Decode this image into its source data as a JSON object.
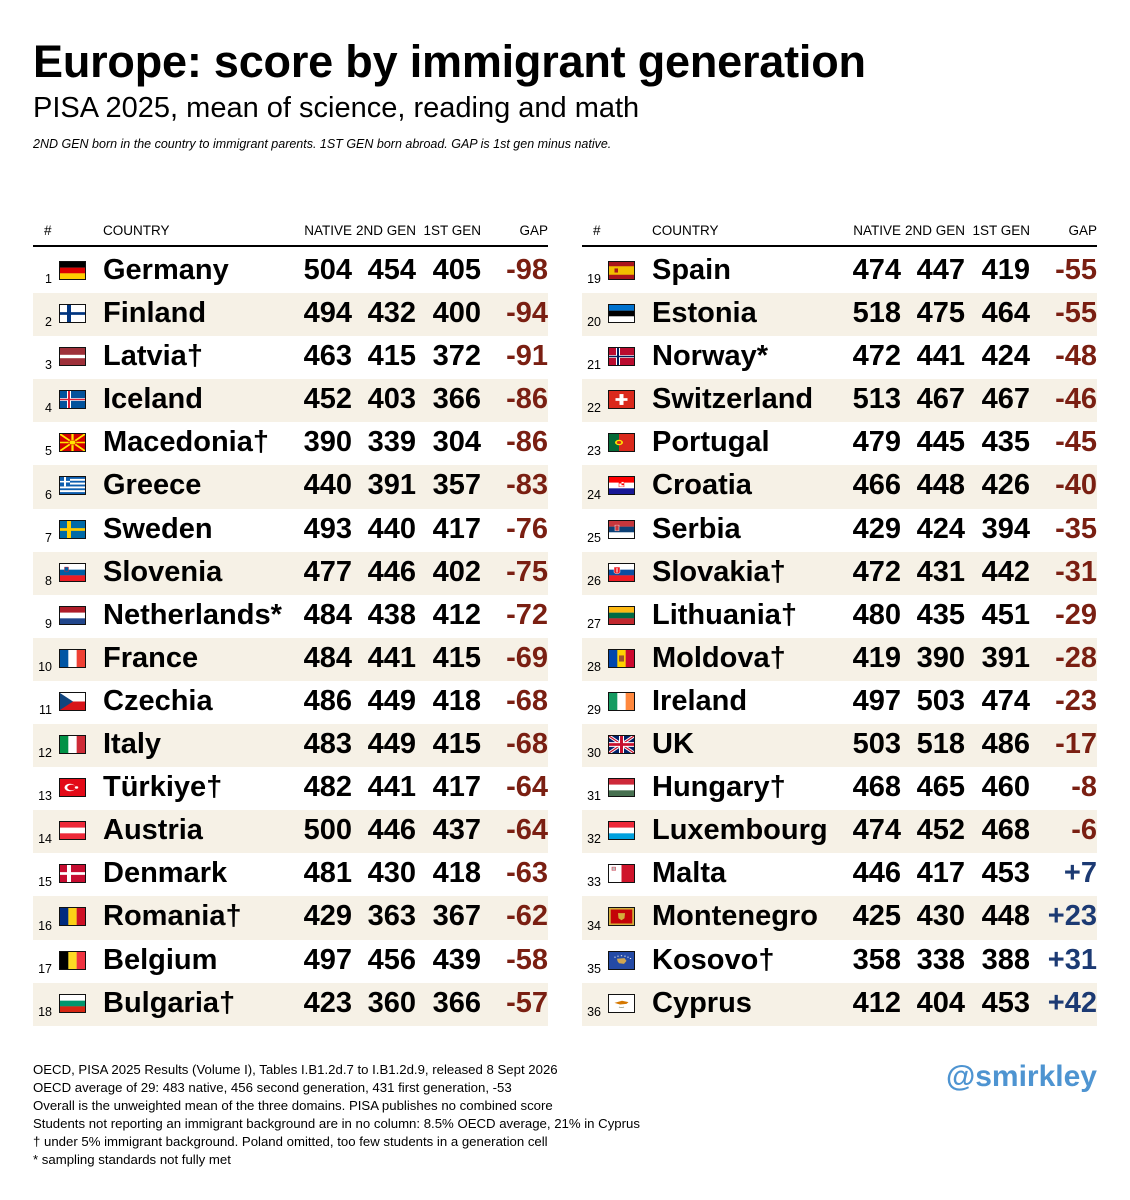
{
  "title": "Europe: score by immigrant generation",
  "subtitle": "PISA 2025, mean of science, reading and math",
  "note": "2ND GEN born in the country to immigrant parents. 1ST GEN born abroad. GAP is 1st gen minus native.",
  "headers": {
    "num": "#",
    "country": "COUNTRY",
    "native": "NATIVE",
    "gen2": "2ND GEN",
    "gen1": "1ST GEN",
    "gap": "GAP"
  },
  "chart_data": {
    "type": "table",
    "columns": [
      "#",
      "COUNTRY",
      "NATIVE",
      "2ND GEN",
      "1ST GEN",
      "GAP"
    ],
    "rows": [
      {
        "rank": "1",
        "country": "Germany",
        "flag": "germany-flag",
        "native": "504",
        "gen2": "454",
        "gen1": "405",
        "gap": "-98"
      },
      {
        "rank": "2",
        "country": "Finland",
        "flag": "finland-flag",
        "native": "494",
        "gen2": "432",
        "gen1": "400",
        "gap": "-94"
      },
      {
        "rank": "3",
        "country": "Latvia†",
        "flag": "latvia-flag",
        "native": "463",
        "gen2": "415",
        "gen1": "372",
        "gap": "-91"
      },
      {
        "rank": "4",
        "country": "Iceland",
        "flag": "iceland-flag",
        "native": "452",
        "gen2": "403",
        "gen1": "366",
        "gap": "-86"
      },
      {
        "rank": "5",
        "country": "Macedonia†",
        "flag": "macedonia-flag",
        "native": "390",
        "gen2": "339",
        "gen1": "304",
        "gap": "-86"
      },
      {
        "rank": "6",
        "country": "Greece",
        "flag": "greece-flag",
        "native": "440",
        "gen2": "391",
        "gen1": "357",
        "gap": "-83"
      },
      {
        "rank": "7",
        "country": "Sweden",
        "flag": "sweden-flag",
        "native": "493",
        "gen2": "440",
        "gen1": "417",
        "gap": "-76"
      },
      {
        "rank": "8",
        "country": "Slovenia",
        "flag": "slovenia-flag",
        "native": "477",
        "gen2": "446",
        "gen1": "402",
        "gap": "-75"
      },
      {
        "rank": "9",
        "country": "Netherlands*",
        "flag": "netherlands-flag",
        "native": "484",
        "gen2": "438",
        "gen1": "412",
        "gap": "-72"
      },
      {
        "rank": "10",
        "country": "France",
        "flag": "france-flag",
        "native": "484",
        "gen2": "441",
        "gen1": "415",
        "gap": "-69"
      },
      {
        "rank": "11",
        "country": "Czechia",
        "flag": "czechia-flag",
        "native": "486",
        "gen2": "449",
        "gen1": "418",
        "gap": "-68"
      },
      {
        "rank": "12",
        "country": "Italy",
        "flag": "italy-flag",
        "native": "483",
        "gen2": "449",
        "gen1": "415",
        "gap": "-68"
      },
      {
        "rank": "13",
        "country": "Türkiye†",
        "flag": "turkiye-flag",
        "native": "482",
        "gen2": "441",
        "gen1": "417",
        "gap": "-64"
      },
      {
        "rank": "14",
        "country": "Austria",
        "flag": "austria-flag",
        "native": "500",
        "gen2": "446",
        "gen1": "437",
        "gap": "-64"
      },
      {
        "rank": "15",
        "country": "Denmark",
        "flag": "denmark-flag",
        "native": "481",
        "gen2": "430",
        "gen1": "418",
        "gap": "-63"
      },
      {
        "rank": "16",
        "country": "Romania†",
        "flag": "romania-flag",
        "native": "429",
        "gen2": "363",
        "gen1": "367",
        "gap": "-62"
      },
      {
        "rank": "17",
        "country": "Belgium",
        "flag": "belgium-flag",
        "native": "497",
        "gen2": "456",
        "gen1": "439",
        "gap": "-58"
      },
      {
        "rank": "18",
        "country": "Bulgaria†",
        "flag": "bulgaria-flag",
        "native": "423",
        "gen2": "360",
        "gen1": "366",
        "gap": "-57"
      },
      {
        "rank": "19",
        "country": "Spain",
        "flag": "spain-flag",
        "native": "474",
        "gen2": "447",
        "gen1": "419",
        "gap": "-55"
      },
      {
        "rank": "20",
        "country": "Estonia",
        "flag": "estonia-flag",
        "native": "518",
        "gen2": "475",
        "gen1": "464",
        "gap": "-55"
      },
      {
        "rank": "21",
        "country": "Norway*",
        "flag": "norway-flag",
        "native": "472",
        "gen2": "441",
        "gen1": "424",
        "gap": "-48"
      },
      {
        "rank": "22",
        "country": "Switzerland",
        "flag": "switzerland-flag",
        "native": "513",
        "gen2": "467",
        "gen1": "467",
        "gap": "-46"
      },
      {
        "rank": "23",
        "country": "Portugal",
        "flag": "portugal-flag",
        "native": "479",
        "gen2": "445",
        "gen1": "435",
        "gap": "-45"
      },
      {
        "rank": "24",
        "country": "Croatia",
        "flag": "croatia-flag",
        "native": "466",
        "gen2": "448",
        "gen1": "426",
        "gap": "-40"
      },
      {
        "rank": "25",
        "country": "Serbia",
        "flag": "serbia-flag",
        "native": "429",
        "gen2": "424",
        "gen1": "394",
        "gap": "-35"
      },
      {
        "rank": "26",
        "country": "Slovakia†",
        "flag": "slovakia-flag",
        "native": "472",
        "gen2": "431",
        "gen1": "442",
        "gap": "-31"
      },
      {
        "rank": "27",
        "country": "Lithuania†",
        "flag": "lithuania-flag",
        "native": "480",
        "gen2": "435",
        "gen1": "451",
        "gap": "-29"
      },
      {
        "rank": "28",
        "country": "Moldova†",
        "flag": "moldova-flag",
        "native": "419",
        "gen2": "390",
        "gen1": "391",
        "gap": "-28"
      },
      {
        "rank": "29",
        "country": "Ireland",
        "flag": "ireland-flag",
        "native": "497",
        "gen2": "503",
        "gen1": "474",
        "gap": "-23"
      },
      {
        "rank": "30",
        "country": "UK",
        "flag": "uk-flag",
        "native": "503",
        "gen2": "518",
        "gen1": "486",
        "gap": "-17"
      },
      {
        "rank": "31",
        "country": "Hungary†",
        "flag": "hungary-flag",
        "native": "468",
        "gen2": "465",
        "gen1": "460",
        "gap": "-8"
      },
      {
        "rank": "32",
        "country": "Luxembourg",
        "flag": "luxembourg-flag",
        "native": "474",
        "gen2": "452",
        "gen1": "468",
        "gap": "-6"
      },
      {
        "rank": "33",
        "country": "Malta",
        "flag": "malta-flag",
        "native": "446",
        "gen2": "417",
        "gen1": "453",
        "gap": "+7"
      },
      {
        "rank": "34",
        "country": "Montenegro",
        "flag": "montenegro-flag",
        "native": "425",
        "gen2": "430",
        "gen1": "448",
        "gap": "+23"
      },
      {
        "rank": "35",
        "country": "Kosovo†",
        "flag": "kosovo-flag",
        "native": "358",
        "gen2": "338",
        "gen1": "388",
        "gap": "+31"
      },
      {
        "rank": "36",
        "country": "Cyprus",
        "flag": "cyprus-flag",
        "native": "412",
        "gen2": "404",
        "gen1": "453",
        "gap": "+42"
      }
    ]
  },
  "colors": {
    "negative_gap": "#7a1f12",
    "positive_gap": "#1c3a73",
    "row_stripe": "#f6f1e6",
    "handle": "#4e94d1"
  },
  "footer": [
    "OECD, PISA 2025 Results (Volume I), Tables I.B1.2d.7 to I.B1.2d.9, released 8 Sept 2026",
    "OECD average of 29: 483 native, 456 second generation, 431 first generation, -53",
    "Overall is the unweighted mean of the three domains. PISA publishes no combined score",
    "Students not reporting an immigrant background are in no column: 8.5% OECD average, 21% in Cyprus",
    "† under 5% immigrant background. Poland omitted, too few students in a generation cell",
    "* sampling standards not fully met"
  ],
  "handle": "@smirkley"
}
